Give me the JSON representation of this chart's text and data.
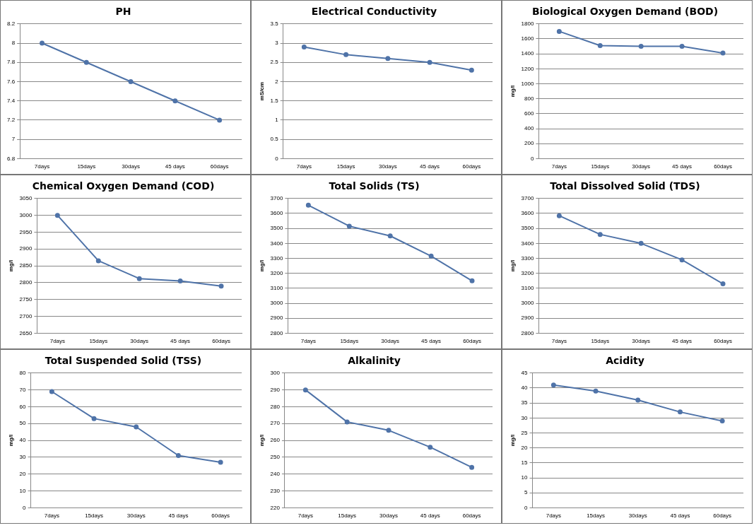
{
  "chart_data": [
    {
      "type": "line",
      "title": "PH",
      "categories": [
        "7days",
        "15days",
        "30days",
        "45 days",
        "60days"
      ],
      "series": [
        {
          "color": "#4f73a8",
          "values": [
            8,
            7.8,
            7.6,
            7.4,
            7.2
          ]
        }
      ],
      "ylim": [
        6.8,
        8.2
      ],
      "yticks": [
        6.8,
        7,
        7.2,
        7.4,
        7.6,
        7.8,
        8,
        8.2
      ],
      "grid": "y",
      "marker": "circle"
    },
    {
      "type": "line",
      "title": "Electrical Conductivity",
      "ylabel": "mS/cm",
      "categories": [
        "7days",
        "15days",
        "30days",
        "45 days",
        "60days"
      ],
      "series": [
        {
          "color": "#4f73a8",
          "values": [
            2.9,
            2.7,
            2.6,
            2.5,
            2.3
          ]
        }
      ],
      "ylim": [
        0,
        3.5
      ],
      "yticks": [
        0,
        0.5,
        1,
        1.5,
        2,
        2.5,
        3,
        3.5
      ],
      "grid": "y",
      "marker": "circle"
    },
    {
      "type": "line",
      "title": "Biological Oxygen Demand (BOD)",
      "ylabel": "mg/l",
      "categories": [
        "7days",
        "15days",
        "30days",
        "45 days",
        "60days"
      ],
      "series": [
        {
          "color": "#4f73a8",
          "values": [
            1700,
            1510,
            1500,
            1500,
            1410
          ]
        }
      ],
      "ylim": [
        0,
        1800
      ],
      "yticks": [
        0,
        200,
        400,
        600,
        800,
        1000,
        1200,
        1400,
        1600,
        1800
      ],
      "grid": "y",
      "marker": "circle"
    },
    {
      "type": "line",
      "title": "Chemical Oxygen Demand (COD)",
      "ylabel": "mg/l",
      "categories": [
        "7days",
        "15days",
        "30days",
        "45 days",
        "60days"
      ],
      "series": [
        {
          "color": "#4f73a8",
          "values": [
            3000,
            2865,
            2812,
            2805,
            2790
          ]
        }
      ],
      "ylim": [
        2650,
        3050
      ],
      "yticks": [
        2650,
        2700,
        2750,
        2800,
        2850,
        2900,
        2950,
        3000,
        3050
      ],
      "grid": "y",
      "marker": "circle"
    },
    {
      "type": "line",
      "title": "Total Solids (TS)",
      "ylabel": "mg/l",
      "categories": [
        "7days",
        "15days",
        "30days",
        "45 days",
        "60days"
      ],
      "series": [
        {
          "color": "#4f73a8",
          "values": [
            3655,
            3515,
            3450,
            3315,
            3150
          ]
        }
      ],
      "ylim": [
        2800,
        3700
      ],
      "yticks": [
        2800,
        2900,
        3000,
        3100,
        3200,
        3300,
        3400,
        3500,
        3600,
        3700
      ],
      "grid": "y",
      "marker": "circle"
    },
    {
      "type": "line",
      "title": "Total Dissolved Solid (TDS)",
      "ylabel": "mg/l",
      "categories": [
        "7days",
        "15days",
        "30days",
        "45 days",
        "60days"
      ],
      "series": [
        {
          "color": "#4f73a8",
          "values": [
            3585,
            3460,
            3400,
            3290,
            3130
          ]
        }
      ],
      "ylim": [
        2800,
        3700
      ],
      "yticks": [
        2800,
        2900,
        3000,
        3100,
        3200,
        3300,
        3400,
        3500,
        3600,
        3700
      ],
      "grid": "y",
      "marker": "circle"
    },
    {
      "type": "line",
      "title": "Total Suspended Solid (TSS)",
      "ylabel": "mg/l",
      "categories": [
        "7days",
        "15days",
        "30days",
        "45 days",
        "60days"
      ],
      "series": [
        {
          "color": "#4f73a8",
          "values": [
            69,
            53,
            48,
            31,
            27
          ]
        }
      ],
      "ylim": [
        0,
        80
      ],
      "yticks": [
        0,
        10,
        20,
        30,
        40,
        50,
        60,
        70,
        80
      ],
      "grid": "y",
      "marker": "circle"
    },
    {
      "type": "line",
      "title": "Alkalinity",
      "ylabel": "mg/l",
      "categories": [
        "7days",
        "15days",
        "30days",
        "45 days",
        "60days"
      ],
      "series": [
        {
          "color": "#4f73a8",
          "values": [
            290,
            271,
            266,
            256,
            244
          ]
        }
      ],
      "ylim": [
        220,
        300
      ],
      "yticks": [
        220,
        230,
        240,
        250,
        260,
        270,
        280,
        290,
        300
      ],
      "grid": "y",
      "marker": "circle"
    },
    {
      "type": "line",
      "title": "Acidity",
      "ylabel": "mg/l",
      "categories": [
        "7days",
        "15days",
        "30days",
        "45 days",
        "60days"
      ],
      "series": [
        {
          "color": "#4f73a8",
          "values": [
            41,
            39,
            36,
            32,
            29
          ]
        }
      ],
      "ylim": [
        0,
        45
      ],
      "yticks": [
        0,
        5,
        10,
        15,
        20,
        25,
        30,
        35,
        40,
        45
      ],
      "grid": "y",
      "marker": "circle"
    }
  ]
}
